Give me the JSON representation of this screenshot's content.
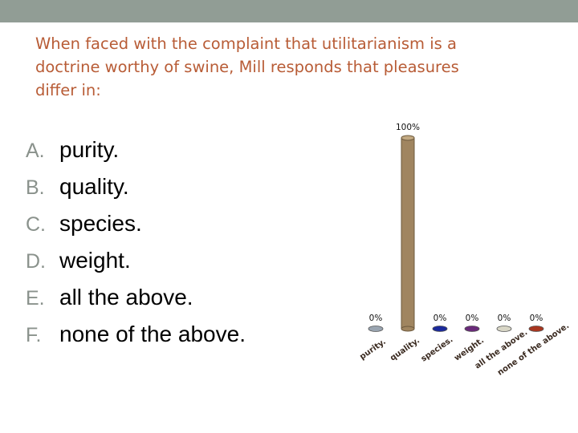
{
  "question": {
    "lines": [
      "When faced with the complaint that utilitarianism is a",
      "doctrine worthy of swine, Mill responds that pleasures",
      "differ in:"
    ]
  },
  "options": [
    {
      "letter": "A.",
      "text": "purity."
    },
    {
      "letter": "B.",
      "text": "quality."
    },
    {
      "letter": "C.",
      "text": "species."
    },
    {
      "letter": "D.",
      "text": "weight."
    },
    {
      "letter": "E.",
      "text": "all the above."
    },
    {
      "letter": "F.",
      "text": "none of the above."
    }
  ],
  "colors": {
    "top_bar": "#919d95",
    "question_text": "#b85c36",
    "option_letter": "#8a928c"
  },
  "chart_data": {
    "type": "bar",
    "categories": [
      "purity.",
      "quality.",
      "species.",
      "weight.",
      "all the above.",
      "none of the above."
    ],
    "values": [
      0,
      100,
      0,
      0,
      0,
      0
    ],
    "labels": [
      "0%",
      "100%",
      "0%",
      "0%",
      "0%",
      "0%"
    ],
    "colors": [
      "#9aa5b1",
      "#a08560",
      "#1b2a9c",
      "#6a2a7a",
      "#d8d6c6",
      "#a8361f"
    ],
    "title": "",
    "xlabel": "",
    "ylabel": "",
    "ylim": [
      0,
      100
    ],
    "grid": false,
    "legend": "none"
  }
}
